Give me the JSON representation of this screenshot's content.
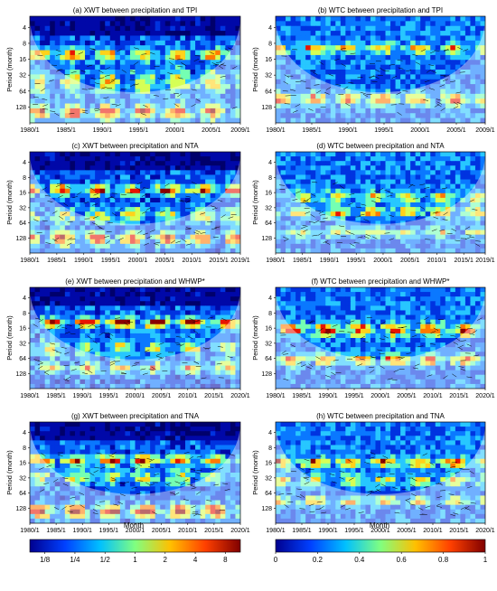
{
  "chart_data": {
    "type": "heatmap",
    "panels": [
      {
        "title": "(a) XWT between precipitation and TPI",
        "kind": "XWT",
        "ylabel": "Period (month)",
        "yticks": [
          "4",
          "8",
          "16",
          "32",
          "64",
          "128"
        ],
        "xticks": [
          "1980/1",
          "1985/1",
          "1990/1",
          "1995/1",
          "2000/1",
          "2005/1",
          "2009/1"
        ],
        "xlim": [
          1980,
          2009
        ]
      },
      {
        "title": "(b) WTC between precipitation and TPI",
        "kind": "WTC",
        "ylabel": "Period (month)",
        "yticks": [
          "4",
          "8",
          "16",
          "32",
          "64",
          "128"
        ],
        "xticks": [
          "1980/1",
          "1985/1",
          "1990/1",
          "1995/1",
          "2000/1",
          "2005/1",
          "2009/1"
        ],
        "xlim": [
          1980,
          2009
        ]
      },
      {
        "title": "(c) XWT between precipitation and NTA",
        "kind": "XWT",
        "ylabel": "Period (month)",
        "yticks": [
          "4",
          "8",
          "16",
          "32",
          "64",
          "128"
        ],
        "xticks": [
          "1980/1",
          "1985/1",
          "1990/1",
          "1995/1",
          "2000/1",
          "2005/1",
          "2010/1",
          "2015/1",
          "2019/1"
        ],
        "xlim": [
          1980,
          2019
        ]
      },
      {
        "title": "(d) WTC between precipitation and NTA",
        "kind": "WTC",
        "ylabel": "Period (month)",
        "yticks": [
          "4",
          "8",
          "16",
          "32",
          "64",
          "128"
        ],
        "xticks": [
          "1980/1",
          "1985/1",
          "1990/1",
          "1995/1",
          "2000/1",
          "2005/1",
          "2010/1",
          "2015/1",
          "2019/1"
        ],
        "xlim": [
          1980,
          2019
        ]
      },
      {
        "title": "(e) XWT between precipitation and WHWP*",
        "kind": "XWT",
        "ylabel": "Period (month)",
        "yticks": [
          "4",
          "8",
          "16",
          "32",
          "64",
          "128"
        ],
        "xticks": [
          "1980/1",
          "1985/1",
          "1990/1",
          "1995/1",
          "2000/1",
          "2005/1",
          "2010/1",
          "2015/1",
          "2020/1"
        ],
        "xlim": [
          1980,
          2020
        ]
      },
      {
        "title": "(f) WTC between precipitation and WHWP*",
        "kind": "WTC",
        "ylabel": "Period (month)",
        "yticks": [
          "4",
          "8",
          "16",
          "32",
          "64",
          "128"
        ],
        "xticks": [
          "1980/1",
          "1985/1",
          "1990/1",
          "1995/1",
          "2000/1",
          "2005/1",
          "2010/1",
          "2015/1",
          "2020/1"
        ],
        "xlim": [
          1980,
          2020
        ]
      },
      {
        "title": "(g) XWT between precipitation and TNA",
        "kind": "XWT",
        "ylabel": "Period (month)",
        "yticks": [
          "4",
          "8",
          "16",
          "32",
          "64",
          "128"
        ],
        "xticks": [
          "1980/1",
          "1985/1",
          "1990/1",
          "1995/1",
          "2000/1",
          "2005/1",
          "2010/1",
          "2015/1",
          "2020/1"
        ],
        "xlim": [
          1980,
          2020
        ]
      },
      {
        "title": "(h) WTC between precipitation and TNA",
        "kind": "WTC",
        "ylabel": "Period (month)",
        "yticks": [
          "4",
          "8",
          "16",
          "32",
          "64",
          "128"
        ],
        "xticks": [
          "1980/1",
          "1985/1",
          "1990/1",
          "1995/1",
          "2000/1",
          "2005/1",
          "2010/1",
          "2015/1",
          "2020/1"
        ],
        "xlim": [
          1980,
          2020
        ]
      }
    ],
    "xlabel": "Month",
    "colorbars": [
      {
        "scale": "log2",
        "ticks": [
          "1/8",
          "1/4",
          "1/2",
          "1",
          "2",
          "4",
          "8"
        ],
        "colors": [
          "#00008f",
          "#0040ff",
          "#00c0ff",
          "#80ff80",
          "#ffc000",
          "#ff4000",
          "#800000"
        ]
      },
      {
        "scale": "linear",
        "ticks": [
          "0",
          "0.2",
          "0.4",
          "0.6",
          "0.8",
          "1"
        ],
        "colors": [
          "#00008f",
          "#0040ff",
          "#00c0ff",
          "#80ff80",
          "#ffc000",
          "#ff4000",
          "#800000"
        ]
      }
    ]
  }
}
